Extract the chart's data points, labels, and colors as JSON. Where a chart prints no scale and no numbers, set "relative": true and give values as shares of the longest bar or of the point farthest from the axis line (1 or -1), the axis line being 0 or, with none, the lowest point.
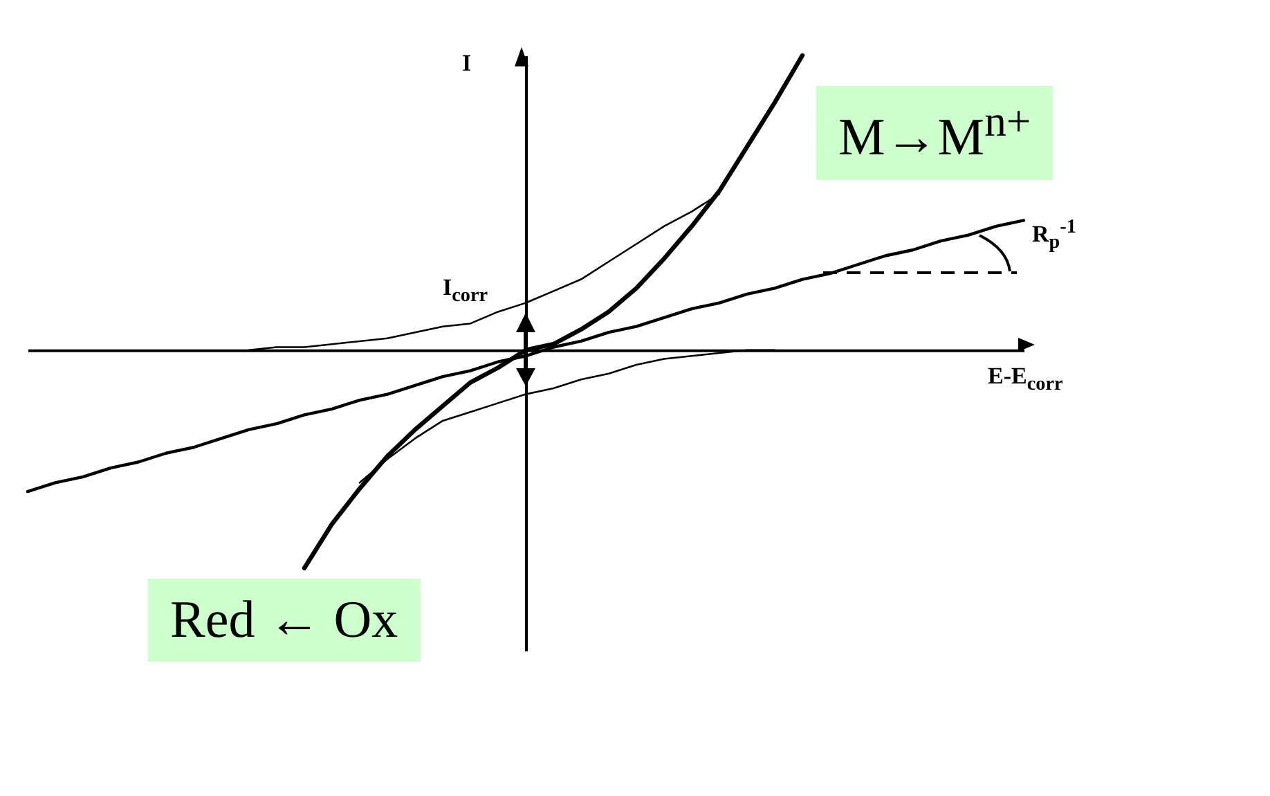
{
  "chart_data": {
    "type": "line",
    "relative": true,
    "xlabel": "E-E$_{corr}$",
    "ylabel": "I",
    "categories": [
      null,
      null,
      null,
      null,
      null,
      null,
      null,
      null,
      null,
      null,
      null,
      null,
      null,
      null,
      null,
      null,
      null,
      null,
      null,
      null,
      null,
      null,
      null,
      null,
      null,
      null,
      null,
      null,
      null,
      null,
      null,
      null,
      null,
      null,
      null,
      null,
      null
    ],
    "series": [
      {
        "color": "#000000",
        "values": [
          -0.48,
          -0.45,
          -0.43,
          -0.4,
          -0.38,
          -0.35,
          -0.33,
          -0.3,
          -0.27,
          -0.25,
          -0.22,
          -0.2,
          -0.17,
          -0.15,
          -0.12,
          -0.09,
          -0.07,
          -0.04,
          -0.02,
          0.01,
          0.03,
          0.06,
          0.08,
          0.11,
          0.14,
          0.16,
          0.19,
          0.21,
          0.24,
          0.26,
          0.29,
          0.32,
          0.34,
          0.37,
          0.39,
          0.42,
          0.44
        ]
      },
      {
        "color": "#000000",
        "values": [
          null,
          null,
          null,
          null,
          null,
          null,
          null,
          null,
          null,
          null,
          -0.74,
          -0.59,
          -0.47,
          -0.36,
          -0.27,
          -0.19,
          -0.11,
          -0.06,
          0,
          0.02,
          0.07,
          0.13,
          0.21,
          0.31,
          0.42,
          0.54,
          0.69,
          0.84,
          1,
          null,
          null,
          null,
          null,
          null,
          null,
          null,
          null
        ]
      },
      {
        "color": "#000000",
        "values": [
          null,
          null,
          null,
          null,
          null,
          null,
          null,
          null,
          0,
          0.01,
          0.01,
          0.02,
          0.03,
          0.04,
          0.06,
          0.08,
          0.09,
          0.13,
          0.16,
          0.2,
          0.24,
          0.3,
          0.36,
          0.42,
          0.47,
          0.53,
          null,
          null,
          null,
          null,
          null,
          null,
          null,
          null,
          null,
          null,
          null
        ]
      },
      {
        "color": "#000000",
        "values": [
          null,
          null,
          null,
          null,
          null,
          null,
          null,
          null,
          null,
          null,
          null,
          null,
          -0.45,
          -0.37,
          -0.3,
          -0.24,
          -0.21,
          -0.18,
          -0.15,
          -0.13,
          -0.1,
          -0.08,
          -0.05,
          -0.03,
          -0.02,
          -0.01,
          0,
          0,
          null,
          null,
          null,
          null,
          null,
          null,
          null,
          null,
          null
        ]
      }
    ],
    "annotations": [
      "I$_{corr}$",
      "R$_{p}$$^{-1}$",
      "M→M$^{n+}$",
      "Red ← Ox"
    ]
  }
}
